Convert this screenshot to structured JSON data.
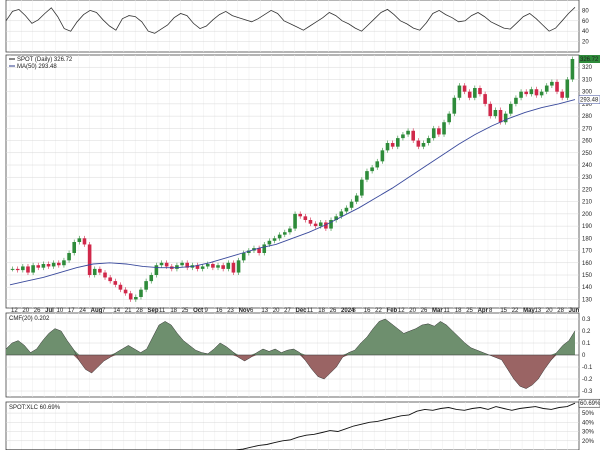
{
  "chart_data": [
    {
      "type": "line",
      "panel": "rsi",
      "y_ticks": [
        20,
        40,
        60,
        80
      ],
      "ylim": [
        0,
        100
      ],
      "color": "#333333",
      "values": [
        60,
        78,
        82,
        70,
        55,
        62,
        74,
        85,
        68,
        45,
        40,
        58,
        72,
        80,
        76,
        62,
        50,
        42,
        64,
        70,
        68,
        58,
        40,
        36,
        44,
        52,
        66,
        74,
        70,
        55,
        45,
        50,
        62,
        72,
        78,
        70,
        66,
        62,
        58,
        64,
        72,
        80,
        74,
        60,
        54,
        48,
        42,
        50,
        58,
        66,
        76,
        70,
        60,
        54,
        46,
        40,
        52,
        64,
        76,
        82,
        72,
        60,
        54,
        46,
        42,
        56,
        74,
        80,
        72,
        66,
        58,
        60,
        70,
        76,
        68,
        58,
        52,
        46,
        44,
        56,
        68,
        74,
        64,
        52,
        40,
        46,
        60,
        74,
        86
      ]
    },
    {
      "type": "candlestick",
      "panel": "price",
      "legend": [
        {
          "label": "SPOT (Daily) 326.72",
          "color": "#111111"
        },
        {
          "label": "MA(50) 293.48",
          "color": "#2b3a8c"
        }
      ],
      "y_ticks": [
        130,
        140,
        150,
        160,
        170,
        180,
        190,
        200,
        210,
        220,
        230,
        240,
        250,
        260,
        270,
        280,
        290,
        300,
        310,
        320
      ],
      "ylim": [
        123,
        330
      ],
      "last_price_label": "326.72",
      "ma_last_label": "293.48",
      "up_color": "#2e8b3a",
      "down_color": "#d0284a",
      "ma_color": "#3a4a9c",
      "closes": [
        155,
        154,
        157,
        152,
        158,
        156,
        159,
        157,
        160,
        158,
        162,
        168,
        177,
        180,
        175,
        150,
        155,
        152,
        148,
        145,
        142,
        138,
        135,
        130,
        132,
        138,
        145,
        150,
        158,
        160,
        157,
        155,
        158,
        160,
        156,
        158,
        155,
        157,
        159,
        156,
        158,
        155,
        160,
        152,
        162,
        168,
        170,
        172,
        168,
        175,
        178,
        180,
        183,
        185,
        188,
        200,
        198,
        195,
        192,
        190,
        193,
        188,
        195,
        198,
        202,
        205,
        210,
        215,
        228,
        235,
        238,
        243,
        252,
        258,
        255,
        262,
        265,
        268,
        260,
        255,
        258,
        262,
        270,
        265,
        275,
        282,
        295,
        305,
        300,
        295,
        303,
        298,
        290,
        280,
        285,
        275,
        282,
        290,
        295,
        300,
        298,
        302,
        297,
        300,
        305,
        308,
        300,
        295,
        310,
        326.72
      ],
      "ma": [
        142,
        145,
        148,
        152,
        156,
        159,
        160,
        159,
        157,
        156,
        156,
        157,
        160,
        164,
        168,
        172,
        175,
        180,
        185,
        191,
        198,
        205,
        213,
        221,
        230,
        239,
        248,
        257,
        265,
        272,
        278,
        283,
        287,
        290,
        293.48
      ]
    },
    {
      "type": "area",
      "panel": "cmf",
      "legend": [
        {
          "label": "CMF(20) 0.202",
          "color": "#111111"
        }
      ],
      "y_ticks": [
        -0.3,
        -0.2,
        -0.1,
        0.0,
        0.1,
        0.2,
        0.3
      ],
      "ylim": [
        -0.35,
        0.35
      ],
      "pos_color": "#6e8f6e",
      "neg_color": "#9a6464",
      "last_label": "0.202",
      "values": [
        0.05,
        0.1,
        0.12,
        0.08,
        0.02,
        0.05,
        0.12,
        0.18,
        0.22,
        0.2,
        0.12,
        0.05,
        -0.05,
        -0.12,
        -0.15,
        -0.1,
        -0.05,
        -0.02,
        0.02,
        0.05,
        0.08,
        0.05,
        0.02,
        0.05,
        0.15,
        0.25,
        0.28,
        0.25,
        0.18,
        0.12,
        0.08,
        0.04,
        0.02,
        0.01,
        0.05,
        0.1,
        0.07,
        0.03,
        -0.02,
        -0.05,
        -0.02,
        0.02,
        0.05,
        0.03,
        0.05,
        0.02,
        0.04,
        0.05,
        0.02,
        -0.05,
        -0.12,
        -0.18,
        -0.2,
        -0.15,
        -0.1,
        -0.02,
        0.02,
        0.04,
        0.1,
        0.15,
        0.22,
        0.28,
        0.3,
        0.26,
        0.22,
        0.18,
        0.2,
        0.22,
        0.25,
        0.26,
        0.24,
        0.28,
        0.25,
        0.2,
        0.15,
        0.1,
        0.06,
        0.04,
        0.02,
        0.0,
        -0.02,
        -0.04,
        -0.12,
        -0.2,
        -0.26,
        -0.28,
        -0.25,
        -0.2,
        -0.12,
        -0.05,
        0.02,
        0.08,
        0.12,
        0.202
      ]
    },
    {
      "type": "line",
      "panel": "ratio",
      "legend": [
        {
          "label": "SPOT:XLC 60.69%",
          "color": "#111111"
        }
      ],
      "y_ticks": [
        20,
        30,
        40,
        50
      ],
      "y_tick_labels": [
        "20%",
        "30%",
        "40%",
        "50%"
      ],
      "ylim": [
        10,
        62
      ],
      "last_label": "60.69%",
      "color": "#111111",
      "values": [
        10,
        10,
        10,
        10,
        10,
        10,
        10,
        10,
        10,
        10,
        10,
        10,
        10,
        10,
        10,
        10,
        10,
        10,
        10,
        10,
        10,
        10,
        10,
        10,
        10,
        10,
        10,
        10,
        10,
        10,
        11,
        13,
        15,
        16,
        18,
        20,
        21,
        24,
        26,
        27,
        29,
        31,
        30,
        33,
        36,
        38,
        40,
        41,
        43,
        45,
        47,
        48,
        52,
        54,
        53,
        55,
        56,
        54,
        53,
        55,
        56,
        54,
        57,
        55,
        53,
        55,
        56,
        57,
        55,
        54,
        56,
        57,
        60.69
      ]
    }
  ],
  "x_axis": {
    "labels": [
      "12",
      "20",
      "26",
      "Jul",
      "10",
      "17",
      "24",
      "Aug",
      "7",
      "14",
      "21",
      "28",
      "Sep",
      "11",
      "18",
      "25",
      "Oct",
      "9",
      "16",
      "23",
      "Nov",
      "6",
      "13",
      "20",
      "27",
      "Dec",
      "11",
      "18",
      "26",
      "2024",
      "8",
      "16",
      "22",
      "Feb",
      "12",
      "20",
      "26",
      "Mar",
      "11",
      "18",
      "25",
      "Apr",
      "8",
      "15",
      "22",
      "May",
      "13",
      "20",
      "28",
      "Jun"
    ],
    "bold": [
      "Jul",
      "Aug",
      "Sep",
      "Oct",
      "Nov",
      "Dec",
      "2024",
      "Feb",
      "Mar",
      "Apr",
      "May",
      "Jun"
    ]
  }
}
